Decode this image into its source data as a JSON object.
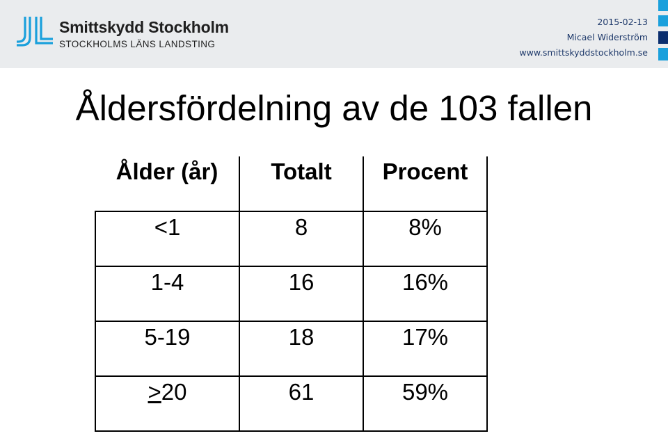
{
  "header": {
    "logo_name": "Smittskydd Stockholm",
    "logo_sub": "STOCKHOLMS LÄNS LANDSTING",
    "date": "2015-02-13",
    "author": "Micael Widerström",
    "website": "www.smittskyddstockholm.se",
    "colors": {
      "background": "#eaecee",
      "brand_blue": "#1aa0dc",
      "dark_blue": "#0b2e6e"
    }
  },
  "slide": {
    "title": "Åldersfördelning av de 103 fallen"
  },
  "table": {
    "columns": [
      "Ålder (år)",
      "Totalt",
      "Procent"
    ],
    "rows": [
      {
        "age": "<1",
        "total": "8",
        "percent": "8%"
      },
      {
        "age": "1-4",
        "total": "16",
        "percent": "16%"
      },
      {
        "age": "5-19",
        "total": "18",
        "percent": "17%"
      },
      {
        "age_symbol": ">",
        "age": "20",
        "total": "61",
        "percent": "59%"
      }
    ]
  }
}
